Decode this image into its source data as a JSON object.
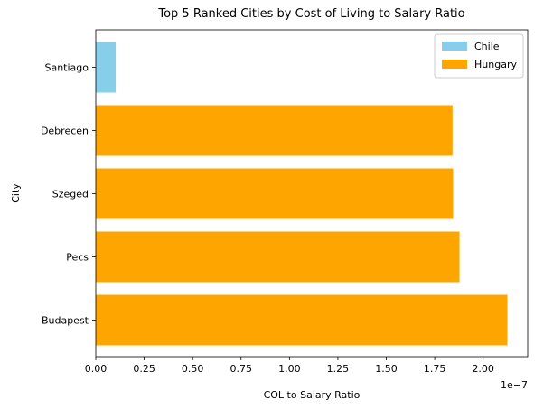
{
  "chart_data": {
    "type": "bar",
    "orientation": "horizontal",
    "title": "Top 5 Ranked Cities by Cost of Living to Salary Ratio",
    "xlabel": "COL to Salary Ratio",
    "ylabel": "City",
    "x_offset_label": "1e−7",
    "categories": [
      "Budapest",
      "Pecs",
      "Szeged",
      "Debrecen",
      "Santiago"
    ],
    "values": [
      2.125,
      1.878,
      1.845,
      1.842,
      0.103
    ],
    "value_scale": 1e-07,
    "bar_series": [
      "Hungary",
      "Hungary",
      "Hungary",
      "Hungary",
      "Chile"
    ],
    "xlim": [
      0,
      2.23
    ],
    "xticks": [
      "0.00",
      "0.25",
      "0.50",
      "0.75",
      "1.00",
      "1.25",
      "1.50",
      "1.75",
      "2.00"
    ],
    "legend": {
      "placement": "top-right",
      "entries": [
        {
          "name": "Chile",
          "color": "#87ceeb"
        },
        {
          "name": "Hungary",
          "color": "#ffa500"
        }
      ]
    },
    "grid": false
  }
}
